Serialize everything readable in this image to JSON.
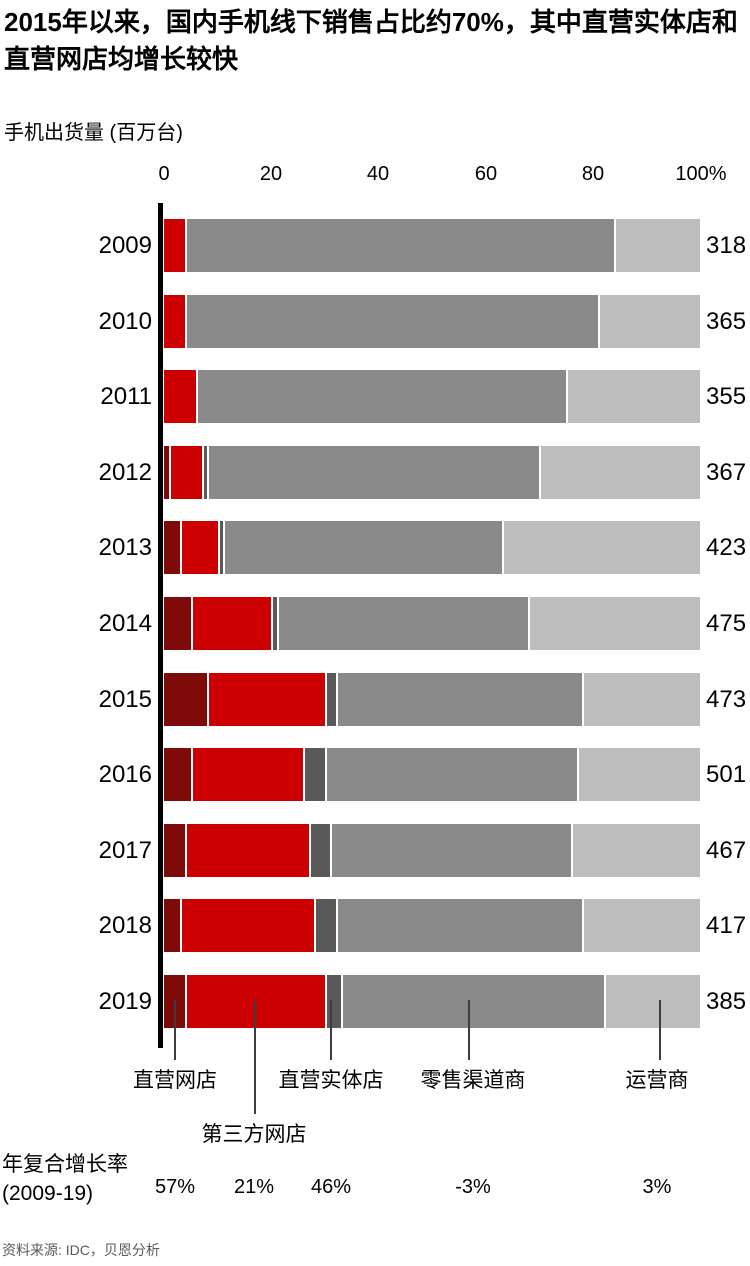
{
  "title_line1": "2015年以来，国内手机线下销售占比约70%，其中直营实体店和",
  "title_line2": "直营网店均增长较快",
  "subtitle": "手机出货量 (百万台)",
  "axis": {
    "ticks": [
      "0",
      "20",
      "40",
      "60",
      "80",
      "100%"
    ]
  },
  "chart_data": {
    "type": "bar",
    "orientation": "horizontal",
    "stacked": true,
    "unit": "percent of shipments",
    "xlim": [
      0,
      100
    ],
    "title": "手机出货量 (百万台)",
    "categories": [
      "2009",
      "2010",
      "2011",
      "2012",
      "2013",
      "2014",
      "2015",
      "2016",
      "2017",
      "2018",
      "2019"
    ],
    "series": [
      {
        "name": "直营网店",
        "color": "#7f0a0a",
        "values": [
          0,
          0,
          0,
          1,
          3,
          5,
          8,
          5,
          4,
          3,
          4
        ]
      },
      {
        "name": "第三方网店",
        "color": "#cc0000",
        "values": [
          4,
          4,
          6,
          6,
          7,
          15,
          22,
          21,
          23,
          25,
          26
        ]
      },
      {
        "name": "直营实体店",
        "color": "#595959",
        "values": [
          0,
          0,
          0,
          1,
          1,
          1,
          2,
          4,
          4,
          4,
          3
        ]
      },
      {
        "name": "零售渠道商",
        "color": "#8a8a8a",
        "values": [
          80,
          77,
          69,
          62,
          52,
          47,
          46,
          47,
          45,
          46,
          49
        ]
      },
      {
        "name": "运营商",
        "color": "#bdbdbd",
        "values": [
          16,
          19,
          25,
          30,
          37,
          32,
          22,
          23,
          24,
          22,
          18
        ]
      }
    ],
    "totals": [
      318,
      365,
      355,
      367,
      423,
      475,
      473,
      501,
      467,
      417,
      385
    ],
    "totals_label": "手机出货量 (百万台)",
    "legend_position": "bottom-callouts"
  },
  "legend": {
    "items": [
      {
        "label": "直营网店"
      },
      {
        "label": "第三方网店"
      },
      {
        "label": "直营实体店"
      },
      {
        "label": "零售渠道商"
      },
      {
        "label": "运营商"
      }
    ]
  },
  "cagr": {
    "label_line1": "年复合增长率",
    "label_line2": "(2009-19)",
    "values": [
      {
        "series": "直营网店",
        "value": "57%"
      },
      {
        "series": "第三方网店",
        "value": "21%"
      },
      {
        "series": "直营实体店",
        "value": "46%"
      },
      {
        "series": "零售渠道商",
        "value": "-3%"
      },
      {
        "series": "运营商",
        "value": "3%"
      }
    ]
  },
  "source": "资料来源: IDC，贝恩分析"
}
